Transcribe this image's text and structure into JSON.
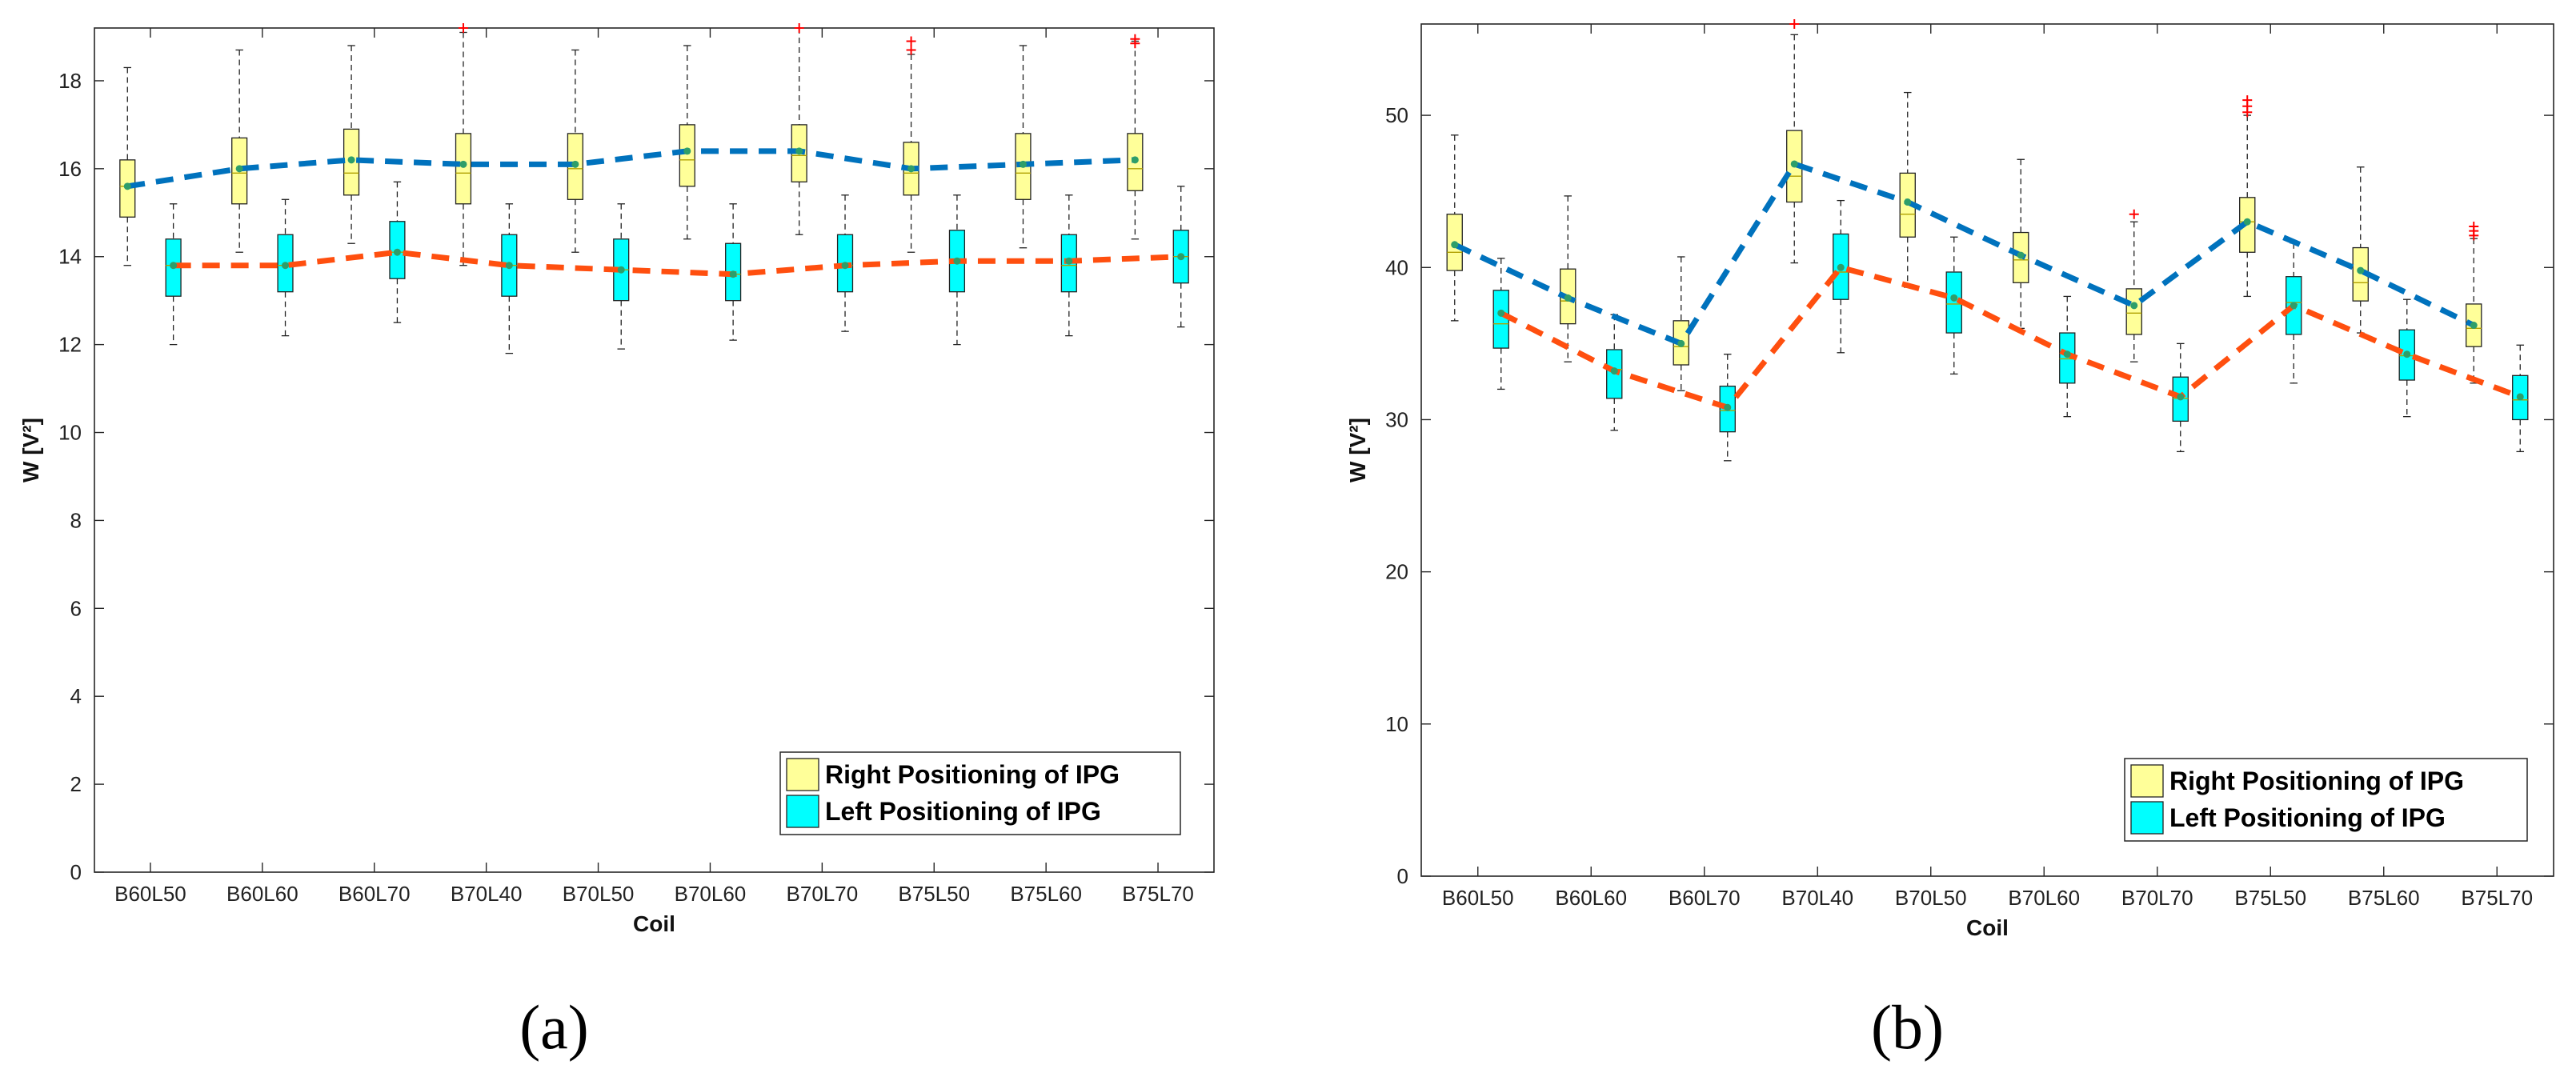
{
  "colors": {
    "right_box": "#ffff99",
    "left_box": "#00ffff",
    "right_trend": "#0072bd",
    "left_trend": "#ff4f0f",
    "median": "#2e9e6a",
    "outlier": "#ff0000"
  },
  "chart_data": [
    {
      "type": "box",
      "panel_label": "(a)",
      "title": "",
      "xlabel": "Coil",
      "ylabel": "W [V²]",
      "ylim": [
        0,
        19.2
      ],
      "yticks": [
        0,
        2,
        4,
        6,
        8,
        10,
        12,
        14,
        16,
        18
      ],
      "categories": [
        "B60L50",
        "B60L60",
        "B60L70",
        "B70L40",
        "B70L50",
        "B70L60",
        "B70L70",
        "B75L50",
        "B75L60",
        "B75L70"
      ],
      "legend": [
        "Right Positioning of IPG",
        "Left Positioning of IPG"
      ],
      "series": [
        {
          "name": "Right Positioning of IPG",
          "median": [
            15.6,
            15.9,
            15.9,
            15.9,
            16.0,
            16.2,
            16.3,
            15.9,
            15.9,
            16.0
          ],
          "q1": [
            14.9,
            15.2,
            15.4,
            15.2,
            15.3,
            15.6,
            15.7,
            15.4,
            15.3,
            15.5
          ],
          "q3": [
            16.2,
            16.7,
            16.9,
            16.8,
            16.8,
            17.0,
            17.0,
            16.6,
            16.8,
            16.8
          ],
          "whisker_low": [
            13.8,
            14.1,
            14.3,
            13.8,
            14.1,
            14.4,
            14.5,
            14.1,
            14.2,
            14.4
          ],
          "whisker_high": [
            18.3,
            18.7,
            18.8,
            19.1,
            18.7,
            18.8,
            19.2,
            18.6,
            18.8,
            18.9
          ],
          "trend": [
            15.6,
            16.0,
            16.2,
            16.1,
            16.1,
            16.4,
            16.4,
            16.0,
            16.1,
            16.2
          ],
          "outliers": [
            [],
            [],
            [],
            [
              19.2
            ],
            [],
            [],
            [
              19.2
            ],
            [
              18.7,
              18.9
            ],
            [],
            [
              18.85,
              18.95
            ]
          ]
        },
        {
          "name": "Left Positioning of IPG",
          "median": [
            13.8,
            13.8,
            14.1,
            13.8,
            13.7,
            13.6,
            13.8,
            13.9,
            13.8,
            14.0
          ],
          "q1": [
            13.1,
            13.2,
            13.5,
            13.1,
            13.0,
            13.0,
            13.2,
            13.2,
            13.2,
            13.4
          ],
          "q3": [
            14.4,
            14.5,
            14.8,
            14.5,
            14.4,
            14.3,
            14.5,
            14.6,
            14.5,
            14.6
          ],
          "whisker_low": [
            12.0,
            12.2,
            12.5,
            11.8,
            11.9,
            12.1,
            12.3,
            12.0,
            12.2,
            12.4
          ],
          "whisker_high": [
            15.2,
            15.3,
            15.7,
            15.2,
            15.2,
            15.2,
            15.4,
            15.4,
            15.4,
            15.6
          ],
          "trend": [
            13.8,
            13.8,
            14.1,
            13.8,
            13.7,
            13.6,
            13.8,
            13.9,
            13.9,
            14.0
          ],
          "outliers": [
            [],
            [],
            [],
            [],
            [],
            [],
            [],
            [],
            [],
            []
          ]
        }
      ]
    },
    {
      "type": "box",
      "panel_label": "(b)",
      "title": "",
      "xlabel": "Coil",
      "ylabel": "W [V²]",
      "ylim": [
        0,
        56
      ],
      "yticks": [
        0,
        10,
        20,
        30,
        40,
        50
      ],
      "categories": [
        "B60L50",
        "B60L60",
        "B60L70",
        "B70L40",
        "B70L50",
        "B70L60",
        "B70L70",
        "B75L50",
        "B75L60",
        "B75L70"
      ],
      "legend": [
        "Right Positioning of IPG",
        "Left Positioning of IPG"
      ],
      "series": [
        {
          "name": "Right Positioning of IPG",
          "median": [
            41.0,
            37.8,
            34.8,
            46.0,
            43.5,
            40.5,
            37.0,
            43.0,
            39.0,
            36.0
          ],
          "q1": [
            39.8,
            36.3,
            33.6,
            44.3,
            42.0,
            39.0,
            35.6,
            41.0,
            37.8,
            34.8
          ],
          "q3": [
            43.5,
            39.9,
            36.5,
            49.0,
            46.2,
            42.3,
            38.6,
            44.6,
            41.3,
            37.6
          ],
          "whisker_low": [
            36.5,
            33.8,
            31.9,
            40.3,
            38.7,
            36.0,
            33.8,
            38.1,
            35.7,
            32.4
          ],
          "whisker_high": [
            48.7,
            44.7,
            40.7,
            55.3,
            51.5,
            47.1,
            43.0,
            50.0,
            46.6,
            41.9
          ],
          "trend": [
            41.5,
            38.0,
            35.0,
            46.8,
            44.3,
            40.8,
            37.5,
            43.0,
            39.8,
            36.2
          ],
          "outliers": [
            [],
            [],
            [],
            [
              56.0
            ],
            [],
            [],
            [
              43.5
            ],
            [
              50.2,
              50.6,
              51.0
            ],
            [],
            [
              42.1,
              42.4,
              42.7
            ]
          ]
        },
        {
          "name": "Left Positioning of IPG",
          "median": [
            36.3,
            33.3,
            30.6,
            39.7,
            37.6,
            34.0,
            31.4,
            37.7,
            34.2,
            31.3
          ],
          "q1": [
            34.7,
            31.4,
            29.2,
            37.9,
            35.7,
            32.4,
            29.9,
            35.6,
            32.6,
            30.0
          ],
          "q3": [
            38.5,
            34.6,
            32.2,
            42.2,
            39.7,
            35.7,
            32.8,
            39.4,
            35.9,
            32.9
          ],
          "whisker_low": [
            32.0,
            29.3,
            27.3,
            34.4,
            33.0,
            30.2,
            27.9,
            32.4,
            30.2,
            27.9
          ],
          "whisker_high": [
            40.6,
            36.9,
            34.3,
            44.4,
            42.0,
            38.1,
            35.0,
            41.6,
            37.9,
            34.9
          ],
          "trend": [
            37.0,
            33.2,
            30.8,
            40.0,
            38.0,
            34.3,
            31.5,
            37.5,
            34.3,
            31.5
          ],
          "outliers": [
            [],
            [],
            [],
            [],
            [],
            [],
            [],
            [],
            [],
            []
          ]
        }
      ]
    }
  ]
}
